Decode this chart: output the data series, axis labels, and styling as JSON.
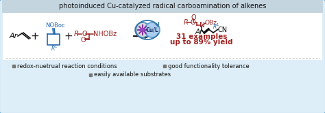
{
  "title": "photoinduced Cu-catalyzed radical carboamination of alkenes",
  "bg_color": "#ddeef8",
  "outer_border_color": "#5599cc",
  "title_bg": "#c5d5e0",
  "footer_items": [
    "redox-nuetrual reaction conditions",
    "good functionality tolerance",
    "easily available substrates"
  ],
  "yield_text_line1": "31 examples",
  "yield_text_line2": "up to 89% yield",
  "yield_color": "#a02020",
  "blue_color": "#2266aa",
  "red_color": "#992222",
  "gray_color": "#888888",
  "dark_gray": "#666666",
  "black": "#111111",
  "footer_bullet_color": "#777777",
  "main_area_bg": "#ffffff"
}
